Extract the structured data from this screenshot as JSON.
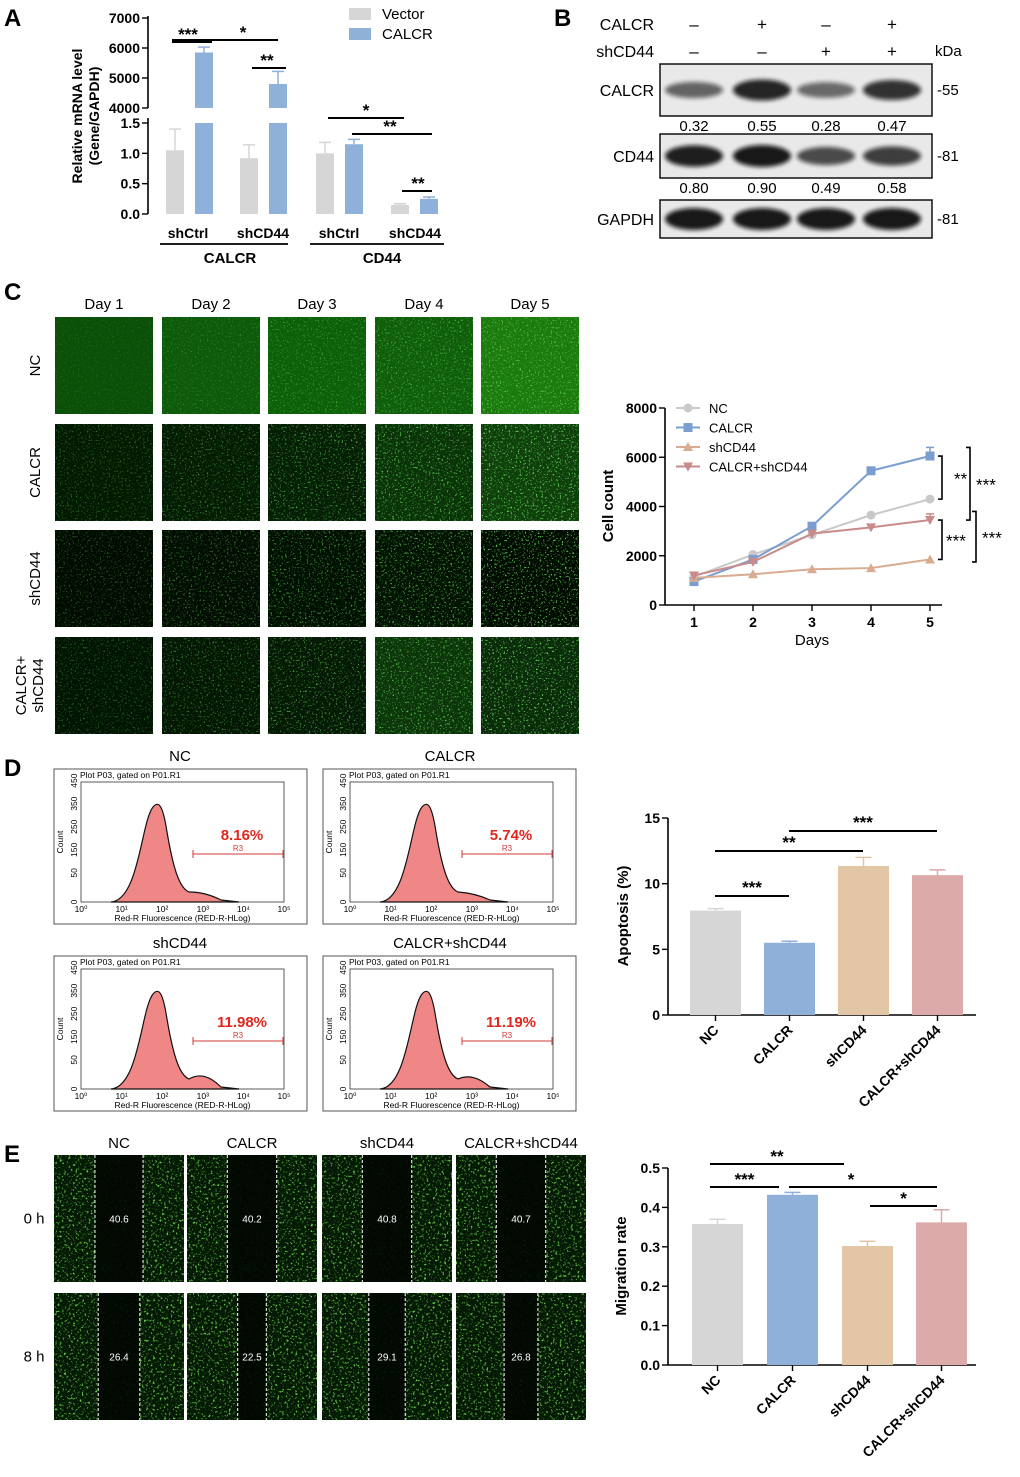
{
  "colors": {
    "vector": "#d6d6d6",
    "calcr": "#8fb0d8",
    "shcd44": "#e3c6a6",
    "calcr_shcd44": "#dcaaa9",
    "nc": "#d6d6d6",
    "fluor_green": "#39c21d",
    "histo_fill": "#f08787",
    "pct_red": "#e0261d",
    "line_nc": "#c9c9c9",
    "line_calcr": "#7a9ed0",
    "line_shcd44": "#d9ab90",
    "line_calcr_shcd44": "#c98a8a"
  },
  "panel_letters": {
    "a": "A",
    "b": "B",
    "c": "C",
    "d": "D",
    "e": "E"
  },
  "panel_a": {
    "chart_data": {
      "type": "bar",
      "ylabel": "Relative mRNA level\n(Gene/GAPDH)",
      "ylim_lower": [
        0,
        1.5
      ],
      "ylim_upper": [
        4000,
        7000
      ],
      "ticks_lower": [
        "0.0",
        "0.5",
        "1.0",
        "1.5"
      ],
      "ticks_upper": [
        "4000",
        "5000",
        "6000",
        "7000"
      ],
      "categories": [
        "shCtrl",
        "shCD44",
        "shCtrl",
        "shCD44"
      ],
      "groups": [
        "CALCR",
        "CD44"
      ],
      "series": [
        {
          "name": "Vector",
          "values": [
            1.05,
            0.92,
            1.0,
            0.15
          ],
          "errors": [
            0.35,
            0.22,
            0.18,
            0.02
          ]
        },
        {
          "name": "CALCR",
          "values": [
            5850,
            4800,
            1.15,
            0.25
          ],
          "errors": [
            180,
            420,
            0.08,
            0.03
          ]
        }
      ],
      "significance": [
        {
          "label": "***",
          "a": 0,
          "b": 0
        },
        {
          "label": "*",
          "a": 0,
          "b": 1
        },
        {
          "label": "**",
          "a": 1,
          "b": 1
        },
        {
          "label": "*",
          "a": 2,
          "b": 3
        },
        {
          "label": "**",
          "a": 2,
          "b": 3
        },
        {
          "label": "**",
          "a": 3,
          "b": 3
        }
      ]
    }
  },
  "panel_b": {
    "lane_labels": {
      "calcr": "CALCR",
      "shcd44": "shCD44"
    },
    "calcr_signs": [
      "–",
      "+",
      "–",
      "+"
    ],
    "shcd44_signs": [
      "–",
      "–",
      "+",
      "+"
    ],
    "unit": "kDa",
    "blots": [
      {
        "name": "CALCR",
        "marker": "-55",
        "quant": [
          "0.32",
          "0.55",
          "0.28",
          "0.47"
        ]
      },
      {
        "name": "CD44",
        "marker": "-81",
        "quant": [
          "0.80",
          "0.90",
          "0.49",
          "0.58"
        ]
      },
      {
        "name": "GAPDH",
        "marker": "-81",
        "quant": []
      }
    ]
  },
  "panel_c": {
    "days": [
      "Day 1",
      "Day 2",
      "Day 3",
      "Day 4",
      "Day 5"
    ],
    "rows": [
      "NC",
      "CALCR",
      "shCD44",
      "CALCR+\nshCD44"
    ],
    "chart_data": {
      "type": "line",
      "xlabel": "Days",
      "ylabel": "Cell count",
      "x": [
        1,
        2,
        3,
        4,
        5
      ],
      "ylim": [
        0,
        8000
      ],
      "yticks": [
        "0",
        "2000",
        "4000",
        "6000",
        "8000"
      ],
      "series": [
        {
          "name": "NC",
          "values": [
            1150,
            2050,
            2850,
            3650,
            4300
          ],
          "marker": "circle"
        },
        {
          "name": "CALCR",
          "values": [
            950,
            1850,
            3200,
            5450,
            6050
          ],
          "marker": "square"
        },
        {
          "name": "shCD44",
          "values": [
            1100,
            1250,
            1450,
            1500,
            1850
          ],
          "marker": "triangle-up"
        },
        {
          "name": "CALCR+shCD44",
          "values": [
            1200,
            1750,
            2900,
            3150,
            3450
          ],
          "marker": "triangle-down"
        }
      ],
      "significance": [
        "**",
        "***",
        "***",
        "***"
      ]
    }
  },
  "panel_d": {
    "plots": [
      {
        "name": "NC",
        "percent": "8.16%"
      },
      {
        "name": "CALCR",
        "percent": "5.74%"
      },
      {
        "name": "shCD44",
        "percent": "11.98%"
      },
      {
        "name": "CALCR+shCD44",
        "percent": "11.19%"
      }
    ],
    "plot_header": "Plot P03, gated on P01.R1",
    "gate_label": "R3",
    "flow_xlabel": "Red-R Fluorescence (RED-R-HLog)",
    "flow_ylabel": "Count",
    "flow_yticks": [
      "0",
      "50",
      "150",
      "250",
      "350",
      "450"
    ],
    "flow_xticks": [
      "10⁰",
      "10¹",
      "10²",
      "10³",
      "10⁴",
      "10⁵"
    ],
    "chart_data": {
      "type": "bar",
      "ylabel": "Apoptosis (%)",
      "categories": [
        "NC",
        "CALCR",
        "shCD44",
        "CALCR+shCD44"
      ],
      "values": [
        7.95,
        5.5,
        11.35,
        10.65
      ],
      "errors": [
        0.15,
        0.12,
        0.65,
        0.4
      ],
      "ylim": [
        0,
        15
      ],
      "yticks": [
        "0",
        "5",
        "10",
        "15"
      ],
      "significance": [
        {
          "label": "***",
          "a": 0,
          "b": 1
        },
        {
          "label": "**",
          "a": 0,
          "b": 2
        },
        {
          "label": "***",
          "a": 1,
          "b": 3
        }
      ]
    }
  },
  "panel_e": {
    "columns": [
      "NC",
      "CALCR",
      "shCD44",
      "CALCR+shCD44"
    ],
    "rows": [
      "0 h",
      "8 h"
    ],
    "widths_0h": [
      "40.6",
      "40.2",
      "40.8",
      "40.7"
    ],
    "widths_8h": [
      "26.4",
      "22.5",
      "29.1",
      "26.8"
    ],
    "chart_data": {
      "type": "bar",
      "ylabel": "Migration rate",
      "categories": [
        "NC",
        "CALCR",
        "shCD44",
        "CALCR+shCD44"
      ],
      "values": [
        0.358,
        0.432,
        0.302,
        0.362
      ],
      "errors": [
        0.012,
        0.006,
        0.012,
        0.032
      ],
      "ylim": [
        0,
        0.5
      ],
      "yticks": [
        "0.0",
        "0.1",
        "0.2",
        "0.3",
        "0.4",
        "0.5"
      ],
      "significance": [
        {
          "label": "**",
          "a": 0,
          "b": 2
        },
        {
          "label": "***",
          "a": 0,
          "b": 1
        },
        {
          "label": "*",
          "a": 1,
          "b": 3
        },
        {
          "label": "*",
          "a": 2,
          "b": 3
        }
      ]
    }
  }
}
